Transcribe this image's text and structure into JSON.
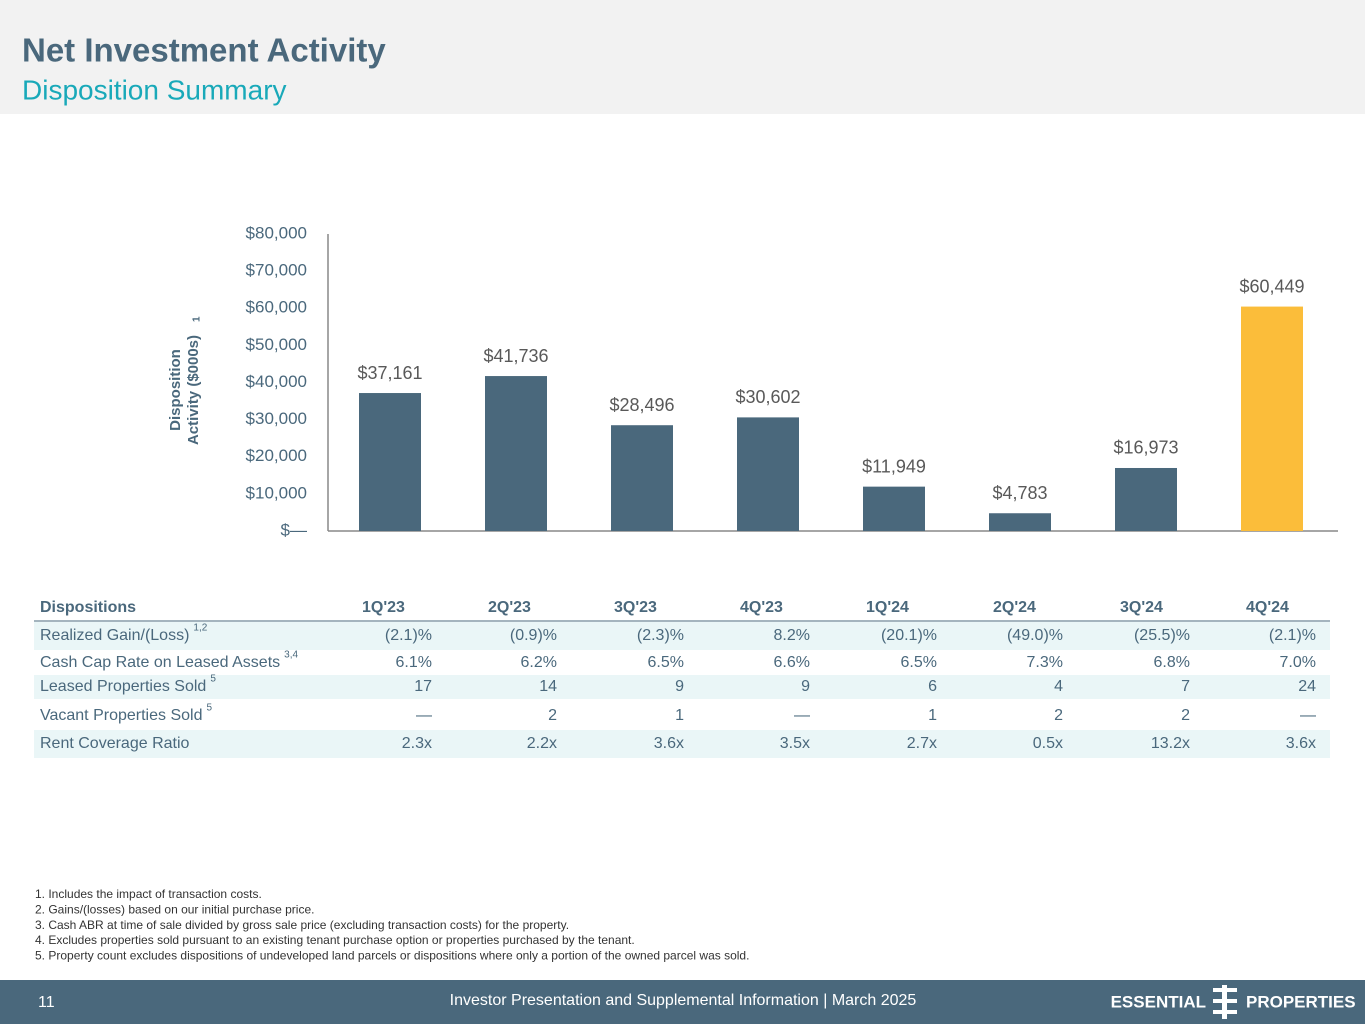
{
  "header": {
    "title": "Net Investment Activity",
    "subtitle": "Disposition Summary"
  },
  "chart_data": {
    "type": "bar",
    "ylabel": [
      "Disposition",
      "Activity ($000s)"
    ],
    "ylabel_note": "1",
    "categories": [
      "1Q'23",
      "2Q'23",
      "3Q'23",
      "4Q'23",
      "1Q'24",
      "2Q'24",
      "3Q'24",
      "4Q'24"
    ],
    "values": [
      37161,
      41736,
      28496,
      30602,
      11949,
      4783,
      16973,
      60449
    ],
    "value_labels": [
      "$37,161",
      "$41,736",
      "$28,496",
      "$30,602",
      "$11,949",
      "$4,783",
      "$16,973",
      "$60,449"
    ],
    "colors": [
      "#4a687c",
      "#4a687c",
      "#4a687c",
      "#4a687c",
      "#4a687c",
      "#4a687c",
      "#4a687c",
      "#fbbd3a"
    ],
    "ylim": [
      0,
      80000
    ],
    "yticks": [
      {
        "value": 0,
        "label": "$—"
      },
      {
        "value": 10000,
        "label": "$10,000"
      },
      {
        "value": 20000,
        "label": "$20,000"
      },
      {
        "value": 30000,
        "label": "$30,000"
      },
      {
        "value": 40000,
        "label": "$40,000"
      },
      {
        "value": 50000,
        "label": "$50,000"
      },
      {
        "value": 60000,
        "label": "$60,000"
      },
      {
        "value": 70000,
        "label": "$70,000"
      },
      {
        "value": 80000,
        "label": "$80,000"
      }
    ],
    "grid": false
  },
  "table": {
    "header": [
      "Dispositions",
      "1Q'23",
      "2Q'23",
      "3Q'23",
      "4Q'23",
      "1Q'24",
      "2Q'24",
      "3Q'24",
      "4Q'24"
    ],
    "rows": [
      {
        "label": "Realized Gain/(Loss)",
        "note": "1,2",
        "cells": [
          "(2.1)%",
          "(0.9)%",
          "(2.3)%",
          "8.2%",
          "(20.1)%",
          "(49.0)%",
          "(25.5)%",
          "(2.1)%"
        ]
      },
      {
        "label": "Cash Cap Rate on Leased Assets",
        "note": "3,4",
        "cells": [
          "6.1%",
          "6.2%",
          "6.5%",
          "6.6%",
          "6.5%",
          "7.3%",
          "6.8%",
          "7.0%"
        ]
      },
      {
        "label": "Leased Properties Sold",
        "note": "5",
        "cells": [
          "17",
          "14",
          "9",
          "9",
          "6",
          "4",
          "7",
          "24"
        ]
      },
      {
        "label": "Vacant Properties Sold",
        "note": "5",
        "cells": [
          "—",
          "2",
          "1",
          "—",
          "1",
          "2",
          "2",
          "—"
        ]
      },
      {
        "label": "Rent Coverage Ratio",
        "cells": [
          "2.3x",
          "2.2x",
          "3.6x",
          "3.5x",
          "2.7x",
          "0.5x",
          "13.2x",
          "3.6x"
        ]
      }
    ]
  },
  "footnotes": [
    "1. Includes the impact of transaction costs.",
    "2. Gains/(losses) based on our initial purchase price.",
    "3. Cash ABR at time of sale divided by gross sale price (excluding transaction costs) for the property.",
    "4. Excludes properties sold pursuant to an existing tenant purchase option or properties purchased by the tenant.",
    "5. Property count excludes dispositions of undeveloped land parcels or dispositions where only a portion of the owned parcel was sold."
  ],
  "footer": {
    "page": "11",
    "text": "Investor Presentation and Supplemental Information |  March 2025",
    "logo_left": "ESSENTIAL",
    "logo_right": "PROPERTIES"
  }
}
